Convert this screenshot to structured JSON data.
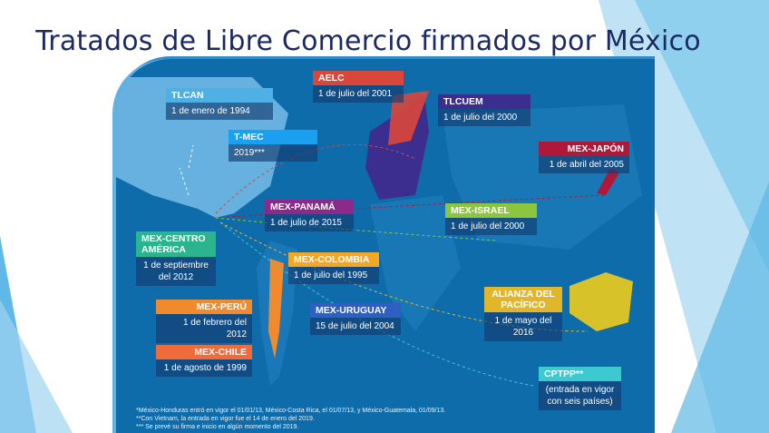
{
  "title": "Tratados de Libre Comercio firmados por México",
  "agreements": [
    {
      "name": "TLCAN",
      "date": "1 de enero de 1994",
      "color": "#4fb0e6"
    },
    {
      "name": "AELC",
      "date": "1 de julio del 2001",
      "color": "#d9473b"
    },
    {
      "name": "TLCUEM",
      "date": "1 de julio del 2000",
      "color": "#3b2e8f"
    },
    {
      "name": "T-MEC",
      "date": "2019***",
      "color": "#1aa0ef"
    },
    {
      "name": "MEX-JAPÓN",
      "date": "1 de abril del 2005",
      "color": "#b0183a"
    },
    {
      "name": "MEX-PANAMÁ",
      "date": "1 de julio de 2015",
      "color": "#8c2a8c"
    },
    {
      "name": "MEX-ISRAEL",
      "date": "1 de julio del 2000",
      "color": "#8cc63f"
    },
    {
      "name": "MEX-CENTRO AMÉRICA",
      "date": "1 de septiembre del 2012",
      "color": "#2bb58f"
    },
    {
      "name": "MEX-COLOMBIA",
      "date": "1 de julio del 1995",
      "color": "#f5a623"
    },
    {
      "name": "MEX-PERÚ",
      "date": "1 de febrero del 2012",
      "color": "#f08a2c"
    },
    {
      "name": "MEX-URUGUAY",
      "date": "15 de julio del 2004",
      "color": "#2e5fc2"
    },
    {
      "name": "ALIANZA DEL PACÍFICO",
      "date": "1 de mayo del 2016",
      "color": "#e2b62a"
    },
    {
      "name": "MEX-CHILE",
      "date": "1 de agosto de 1999",
      "color": "#ef6b3a"
    },
    {
      "name": "CPTPP**",
      "date": "(entrada en vigor con seis países)",
      "color": "#3cc9d0"
    }
  ],
  "notes": [
    "*México-Honduras entró en vigor el 01/01/13, México-Costa Rica, el 01/07/13, y México-Guatemala, 01/09/13.",
    "**Con Vietnam, la entrada en vigor fue el 14 de enero del 2019.",
    "*** Se prevé su firma e inicio en algún momento del 2019."
  ]
}
